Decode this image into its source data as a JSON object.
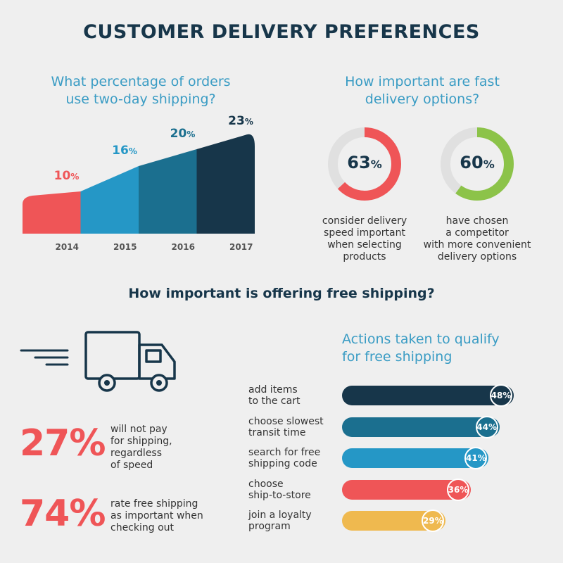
{
  "title": "CUSTOMER DELIVERY PREFERENCES",
  "q1": {
    "line1": "What percentage of orders",
    "line2": "use two-day shipping?"
  },
  "q2": {
    "line1": "How important are fast",
    "line2": "delivery options?"
  },
  "q3": "How important is offering free shipping?",
  "q4": {
    "line1": "Actions taken to qualify",
    "line2": "for free shipping"
  },
  "chart_data": [
    {
      "type": "area",
      "title": "What percentage of orders use two-day shipping?",
      "categories": [
        "2014",
        "2015",
        "2016",
        "2017"
      ],
      "values": [
        10,
        16,
        20,
        23
      ],
      "unit": "%",
      "colors": [
        "#ef5557",
        "#2597c6",
        "#1b6f8f",
        "#17364a"
      ],
      "ylim": [
        0,
        25
      ]
    },
    {
      "type": "pie",
      "title": "How important are fast delivery options?",
      "items": [
        {
          "value": 63,
          "unit": "%",
          "caption": [
            "consider delivery",
            "speed important",
            "when selecting",
            "products"
          ],
          "color": "#ef5557"
        },
        {
          "value": 60,
          "unit": "%",
          "caption": [
            "have chosen",
            "a competitor",
            "with more convenient",
            "delivery options"
          ],
          "color": "#8cc349"
        }
      ],
      "track_color": "#e0e0e0"
    },
    {
      "type": "bar",
      "title": "Actions taken to qualify for free shipping",
      "categories": [
        [
          "add items",
          "to the cart"
        ],
        [
          "choose slowest",
          "transit time"
        ],
        [
          "search for free",
          "shipping code"
        ],
        [
          "choose",
          "ship-to-store"
        ],
        [
          "join a loyalty",
          "program"
        ]
      ],
      "values": [
        48,
        44,
        41,
        36,
        29
      ],
      "unit": "%",
      "colors": [
        "#17364a",
        "#1b6f8f",
        "#2597c6",
        "#ef5557",
        "#efb94f"
      ],
      "xlim": [
        0,
        48
      ]
    }
  ],
  "stats": [
    {
      "value": "27",
      "unit": "%",
      "lines": [
        "will not pay",
        "for shipping,",
        "regardless",
        "of speed"
      ]
    },
    {
      "value": "74",
      "unit": "%",
      "lines": [
        "rate free shipping",
        "as important when",
        "checking out"
      ]
    }
  ],
  "icons": {
    "truck": "truck-icon",
    "speed_lines": "speed-lines-icon"
  }
}
